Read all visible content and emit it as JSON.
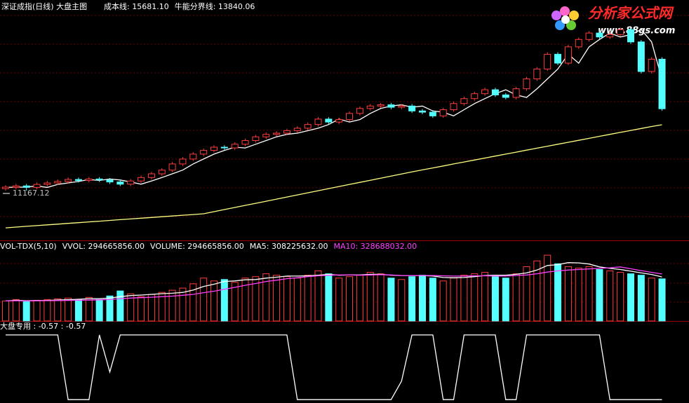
{
  "logo": {
    "title": "分析家公式网",
    "url": "www.88gs.com"
  },
  "chart_data": [
    {
      "type": "candlestick",
      "title": "深证成指(日线) 大盘主图",
      "legend": [
        {
          "text": "成本线: 15681.10",
          "color": "#ffffff"
        },
        {
          "text": "牛能分界线: 13840.06",
          "color": "#ffffff"
        }
      ],
      "categories": [
        null,
        null,
        null,
        null,
        null,
        null,
        null,
        null,
        null,
        null,
        null,
        null,
        null,
        null,
        null,
        null,
        null,
        null,
        null,
        null,
        null,
        null,
        null,
        null,
        null,
        null,
        null,
        null,
        null,
        null,
        null,
        null,
        null,
        null,
        null,
        null,
        null,
        null,
        null,
        null,
        null,
        null,
        null,
        null,
        null,
        null,
        null,
        null,
        null,
        null,
        null,
        null,
        null,
        null,
        null,
        null,
        null,
        null,
        null,
        null,
        null,
        null,
        null,
        null
      ],
      "open": [
        11250,
        11310,
        11360,
        11300,
        11420,
        11480,
        11540,
        11620,
        11580,
        11640,
        11600,
        11520,
        11430,
        11560,
        11700,
        11850,
        12000,
        12250,
        12450,
        12650,
        12800,
        12930,
        12900,
        13050,
        13200,
        13350,
        13450,
        13500,
        13600,
        13700,
        13850,
        14070,
        13950,
        14050,
        14300,
        14500,
        14600,
        14650,
        14550,
        14600,
        14400,
        14350,
        14200,
        14450,
        14700,
        14900,
        15100,
        15260,
        15050,
        14950,
        15300,
        15700,
        16100,
        16700,
        16340,
        17000,
        17300,
        17560,
        17400,
        17500,
        17700,
        17200,
        16000,
        16500
      ],
      "high": [
        11390,
        11440,
        11440,
        11500,
        11560,
        11620,
        11700,
        11700,
        11720,
        11720,
        11680,
        11600,
        11640,
        11780,
        11930,
        12080,
        12330,
        12530,
        12730,
        12880,
        13010,
        13010,
        13130,
        13280,
        13430,
        13530,
        13580,
        13680,
        13780,
        13930,
        14150,
        14150,
        14130,
        14380,
        14580,
        14680,
        14730,
        14730,
        14680,
        14680,
        14480,
        14430,
        14530,
        14780,
        14980,
        15180,
        15340,
        15340,
        15130,
        15380,
        15780,
        16180,
        16780,
        16780,
        17080,
        17380,
        17640,
        17640,
        17580,
        17780,
        17780,
        17280,
        16580,
        16580
      ],
      "low": [
        11170,
        11230,
        11167.12,
        11220,
        11340,
        11400,
        11460,
        11500,
        11500,
        11520,
        11440,
        11350,
        11350,
        11480,
        11620,
        11770,
        11920,
        12170,
        12370,
        12570,
        12720,
        12820,
        12820,
        12970,
        13120,
        13270,
        13370,
        13420,
        13520,
        13620,
        13770,
        13870,
        13870,
        13970,
        14220,
        14420,
        14520,
        14470,
        14470,
        14320,
        14270,
        14120,
        14120,
        14370,
        14620,
        14820,
        15020,
        14970,
        14870,
        14870,
        15220,
        15620,
        16020,
        16260,
        16260,
        16920,
        17220,
        17320,
        17320,
        17420,
        17120,
        15920,
        15920,
        14410
      ],
      "close": [
        11310,
        11360,
        11300,
        11420,
        11480,
        11540,
        11620,
        11580,
        11640,
        11600,
        11520,
        11430,
        11560,
        11700,
        11850,
        12000,
        12250,
        12450,
        12650,
        12800,
        12930,
        12900,
        13050,
        13200,
        13350,
        13450,
        13500,
        13600,
        13700,
        13850,
        14070,
        13950,
        14050,
        14300,
        14500,
        14600,
        14650,
        14550,
        14600,
        14400,
        14350,
        14200,
        14450,
        14700,
        14900,
        15100,
        15260,
        15050,
        14950,
        15300,
        15700,
        16100,
        16700,
        16340,
        17000,
        17300,
        17560,
        17400,
        17500,
        17700,
        17200,
        16000,
        16500,
        14490
      ],
      "up_color": "#ff3c3c",
      "down_color": "#54ffff",
      "series": [
        {
          "color": "#ffffff",
          "values": [
            11300,
            11310,
            11310,
            11360,
            11300,
            11420,
            11480,
            11540,
            11620,
            11580,
            11640,
            11600,
            11520,
            11430,
            11560,
            11700,
            11850,
            12000,
            12250,
            12450,
            12650,
            12800,
            12930,
            12900,
            13050,
            13200,
            13350,
            13450,
            13500,
            13600,
            13700,
            13850,
            14070,
            13950,
            14050,
            14300,
            14500,
            14600,
            14650,
            14550,
            14600,
            14400,
            14350,
            14200,
            14450,
            14700,
            14900,
            15100,
            15260,
            15050,
            14950,
            15300,
            15700,
            16100,
            16700,
            16340,
            17000,
            17300,
            17560,
            17400,
            17500,
            17700,
            17200,
            15681.1
          ]
        },
        {
          "color": "#ffff80",
          "values": [
            9660,
            9690,
            9720,
            9750,
            9780,
            9810,
            9840,
            9870,
            9900,
            9930,
            9960,
            9990,
            10020,
            10050,
            10080,
            10110,
            10140,
            10170,
            10200,
            10230,
            10315,
            10400,
            10485,
            10570,
            10655,
            10740,
            10825,
            10910,
            10995,
            11080,
            11165,
            11250,
            11335,
            11420,
            11505,
            11590,
            11675,
            11760,
            11845,
            11930,
            12010,
            12090,
            12170,
            12250,
            12330,
            12410,
            12490,
            12570,
            12650,
            12730,
            12810,
            12890,
            12970,
            13050,
            13130,
            13210,
            13290,
            13370,
            13450,
            13530,
            13610,
            13690,
            13770,
            13840.06
          ]
        }
      ],
      "ylim": [
        9150,
        18900
      ]
    },
    {
      "type": "bar",
      "legend": [
        {
          "text": "VOL-TDX(5,10)",
          "color": "#ffffff"
        },
        {
          "text": "VVOL: 294665856.00",
          "color": "#ffffff"
        },
        {
          "text": "VOLUME: 294665856.00",
          "color": "#ffffff"
        },
        {
          "text": "MA5: 308225632.00",
          "color": "#ffffff"
        },
        {
          "text": "MA10: 328688032.00",
          "color": "#ff40ff"
        }
      ],
      "values": [
        140000000,
        150000000,
        135000000,
        145000000,
        150000000,
        155000000,
        160000000,
        150000000,
        165000000,
        150000000,
        175000000,
        210000000,
        190000000,
        170000000,
        185000000,
        200000000,
        215000000,
        230000000,
        260000000,
        300000000,
        280000000,
        290000000,
        270000000,
        300000000,
        310000000,
        330000000,
        320000000,
        310000000,
        300000000,
        320000000,
        350000000,
        330000000,
        300000000,
        310000000,
        320000000,
        340000000,
        330000000,
        300000000,
        290000000,
        310000000,
        320000000,
        300000000,
        280000000,
        300000000,
        320000000,
        330000000,
        340000000,
        310000000,
        300000000,
        330000000,
        380000000,
        420000000,
        460000000,
        400000000,
        380000000,
        370000000,
        380000000,
        360000000,
        350000000,
        340000000,
        330000000,
        320000000,
        300000000,
        294665856
      ],
      "series": [
        {
          "color": "#ffffff",
          "values": [
            140000000,
            145000000,
            142000000,
            143000000,
            144000000,
            147000000,
            149000000,
            152000000,
            156000000,
            156000000,
            160000000,
            170000000,
            178000000,
            181000000,
            186000000,
            191000000,
            194000000,
            200000000,
            216000000,
            241000000,
            257000000,
            276000000,
            280000000,
            288000000,
            290000000,
            300000000,
            306000000,
            314000000,
            314000000,
            316000000,
            320000000,
            326000000,
            320000000,
            322000000,
            322000000,
            326000000,
            326000000,
            320000000,
            318000000,
            318000000,
            318000000,
            314000000,
            304000000,
            302000000,
            304000000,
            310000000,
            318000000,
            320000000,
            320000000,
            326000000,
            336000000,
            356000000,
            388000000,
            394000000,
            408000000,
            406000000,
            398000000,
            378000000,
            368000000,
            360000000,
            348000000,
            336000000,
            325000000,
            308225632
          ]
        },
        {
          "color": "#ff40ff",
          "values": [
            140000000,
            142000000,
            140000000,
            141000000,
            142000000,
            143000000,
            144000000,
            145000000,
            146000000,
            148000000,
            150000000,
            156000000,
            160000000,
            163000000,
            166000000,
            170000000,
            174000000,
            180000000,
            186000000,
            198000000,
            208000000,
            222000000,
            235000000,
            250000000,
            262000000,
            276000000,
            285000000,
            296000000,
            302000000,
            310000000,
            316000000,
            320000000,
            322000000,
            322000000,
            320000000,
            322000000,
            324000000,
            322000000,
            318000000,
            318000000,
            318000000,
            318000000,
            316000000,
            314000000,
            314000000,
            316000000,
            316000000,
            314000000,
            314000000,
            318000000,
            322000000,
            330000000,
            342000000,
            350000000,
            356000000,
            360000000,
            364000000,
            368000000,
            372000000,
            378000000,
            365000000,
            352000000,
            340000000,
            328688032
          ]
        }
      ],
      "ylim": [
        0,
        480000000
      ]
    },
    {
      "type": "line",
      "legend": [
        {
          "text": "大盘专用 : -0.57  : -0.57",
          "color": "#ffffff"
        }
      ],
      "color": "#ffffff",
      "values": [
        1,
        1,
        1,
        1,
        1,
        1,
        -0.57,
        -0.57,
        -0.57,
        1,
        0.1,
        1,
        1,
        1,
        1,
        1,
        1,
        1,
        1,
        1,
        1,
        1,
        1,
        1,
        1,
        1,
        1,
        1,
        -0.57,
        -0.57,
        -0.57,
        -0.57,
        -0.57,
        -0.57,
        -0.57,
        -0.57,
        -0.57,
        -0.57,
        -0.12,
        1,
        1,
        1,
        -0.57,
        -0.57,
        1,
        1,
        1,
        1,
        -0.57,
        -0.57,
        1,
        1,
        1,
        1,
        1,
        1,
        1,
        1,
        -0.57,
        -0.57,
        -0.57,
        -0.57,
        -0.57,
        -0.57
      ],
      "ylim": [
        -0.6,
        1.27
      ]
    }
  ]
}
